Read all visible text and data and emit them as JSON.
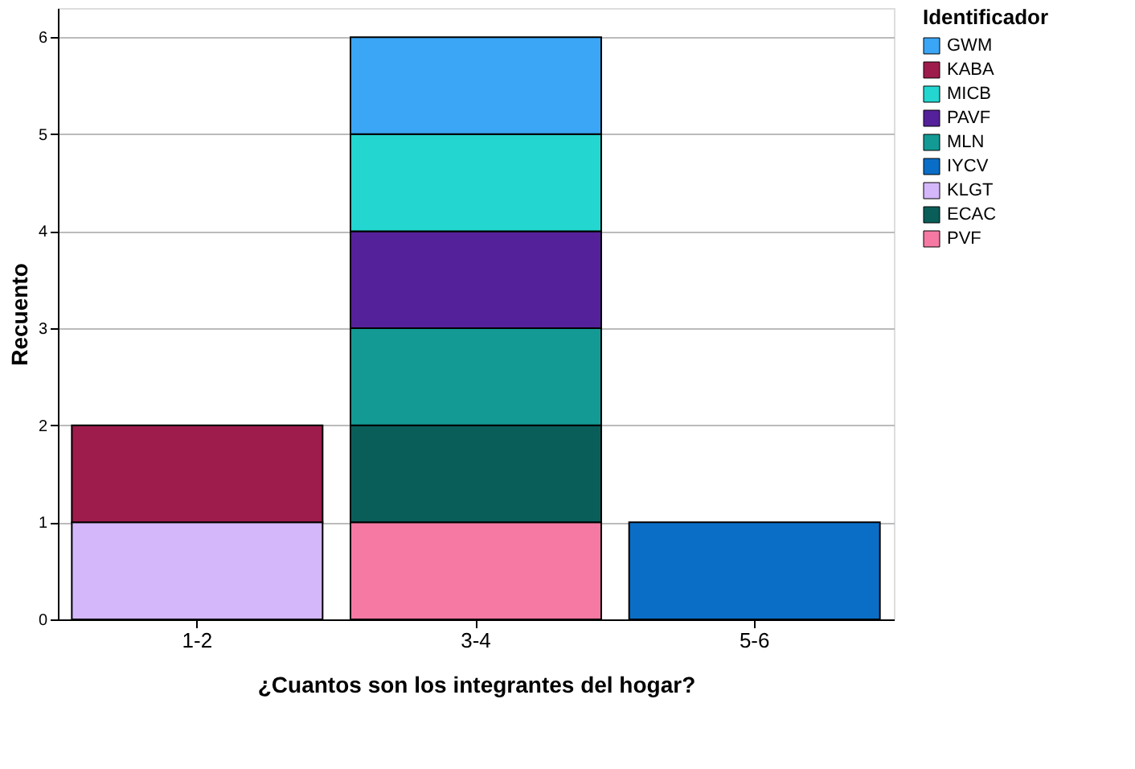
{
  "chart_data": {
    "type": "bar",
    "stacked": true,
    "xlabel": "¿Cuantos son los integrantes del hogar?",
    "ylabel": "Recuento",
    "legend_title": "Identificador",
    "categories": [
      "1-2",
      "3-4",
      "5-6"
    ],
    "series": [
      {
        "name": "PVF",
        "color": "#f579a3",
        "values": [
          null,
          1,
          null
        ]
      },
      {
        "name": "ECAC",
        "color": "#0a5e5a",
        "values": [
          null,
          1,
          null
        ]
      },
      {
        "name": "KLGT",
        "color": "#d4b7fb",
        "values": [
          1,
          null,
          null
        ]
      },
      {
        "name": "IYCV",
        "color": "#0a6ec6",
        "values": [
          null,
          null,
          1
        ]
      },
      {
        "name": "MLN",
        "color": "#139a94",
        "values": [
          null,
          1,
          null
        ]
      },
      {
        "name": "PAVF",
        "color": "#55219a",
        "values": [
          null,
          1,
          null
        ]
      },
      {
        "name": "MICB",
        "color": "#24d6d0",
        "values": [
          null,
          1,
          null
        ]
      },
      {
        "name": "KABA",
        "color": "#9e1c4c",
        "values": [
          1,
          null,
          null
        ]
      },
      {
        "name": "GWM",
        "color": "#3aa6f5",
        "values": [
          null,
          1,
          null
        ]
      }
    ],
    "ylim": [
      0,
      6.3
    ],
    "yticks": [
      0,
      1,
      2,
      3,
      4,
      5,
      6
    ],
    "grid": "y",
    "legend": "top right"
  }
}
